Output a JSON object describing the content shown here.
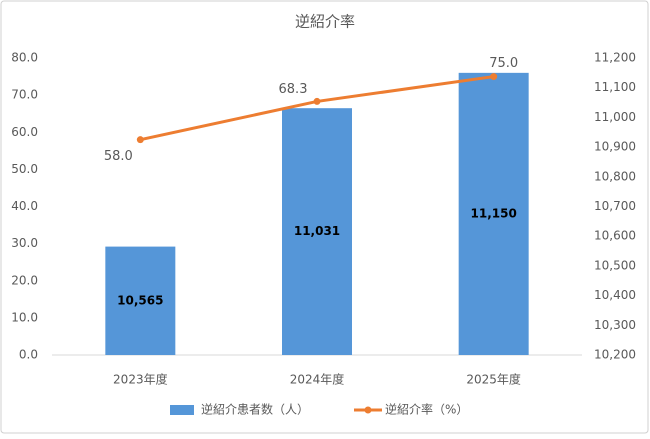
{
  "chart_data": {
    "type": "bar",
    "title": "逆紹介率",
    "categories": [
      "2023年度",
      "2024年度",
      "2025年度"
    ],
    "series": [
      {
        "name": "逆紹介患者数（人）",
        "type": "bar",
        "axis": "y2",
        "color": "#5596d8",
        "values": [
          10565,
          11031,
          11150
        ],
        "value_labels": [
          "10,565",
          "11,031",
          "11,150"
        ]
      },
      {
        "name": "逆紹介率（%）",
        "type": "line",
        "color": "#ed7d31",
        "values": [
          58.0,
          68.3,
          75.0
        ],
        "value_labels": [
          "58.0",
          "68.3",
          "75.0"
        ]
      }
    ],
    "ylim": [
      0,
      80
    ],
    "yticks": [
      {
        "value": 0,
        "label": "0.0"
      },
      {
        "value": 10,
        "label": "10.0"
      },
      {
        "value": 20,
        "label": "20.0"
      },
      {
        "value": 30,
        "label": "30.0"
      },
      {
        "value": 40,
        "label": "40.0"
      },
      {
        "value": 50,
        "label": "50.0"
      },
      {
        "value": 60,
        "label": "60.0"
      },
      {
        "value": 70,
        "label": "70.0"
      },
      {
        "value": 80,
        "label": "80.0"
      }
    ],
    "y2lim": [
      10200,
      11200
    ],
    "y2ticks": [
      {
        "value": 10200,
        "label": "10,200"
      },
      {
        "value": 10300,
        "label": "10,300"
      },
      {
        "value": 10400,
        "label": "10,400"
      },
      {
        "value": 10500,
        "label": "10,500"
      },
      {
        "value": 10600,
        "label": "10,600"
      },
      {
        "value": 10700,
        "label": "10,700"
      },
      {
        "value": 10800,
        "label": "10,800"
      },
      {
        "value": 10900,
        "label": "10,900"
      },
      {
        "value": 11000,
        "label": "11,000"
      },
      {
        "value": 11100,
        "label": "11,100"
      },
      {
        "value": 11200,
        "label": "11,200"
      }
    ],
    "grid": false,
    "legend": "bottom"
  }
}
